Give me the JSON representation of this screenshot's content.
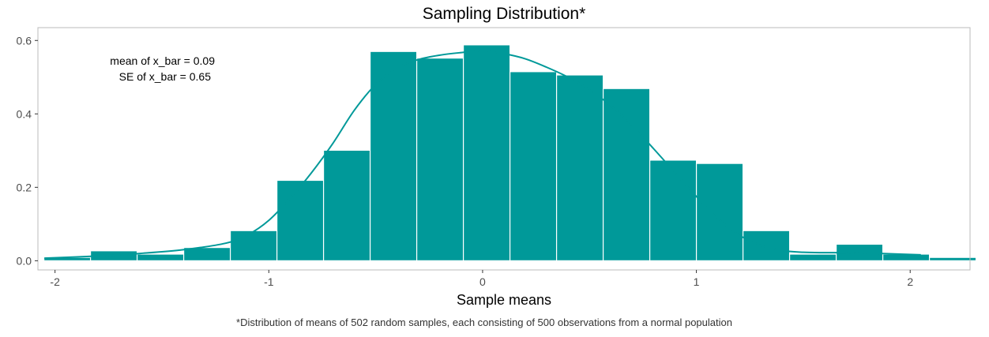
{
  "chart_data": {
    "type": "histogram",
    "title": "Sampling Distribution*",
    "xlabel": "Sample means",
    "ylabel": "",
    "caption": "*Distribution of means of 502 random samples, each consisting of 500 observations from a normal population",
    "annotations": [
      "mean of x_bar = 0.09",
      "SE of x_bar = 0.65"
    ],
    "xlim": [
      -2.08,
      2.28
    ],
    "ylim": [
      -0.025,
      0.635
    ],
    "xticks": [
      -2,
      -1,
      0,
      1,
      2
    ],
    "xtick_labels": [
      "-2",
      "-1",
      "0",
      "1",
      "2"
    ],
    "yticks": [
      0.0,
      0.2,
      0.4,
      0.6
    ],
    "ytick_labels": [
      "0.0",
      "0.2",
      "0.4",
      "0.6"
    ],
    "grid": false,
    "bin_width": 0.218,
    "bins": [
      {
        "x0": -2.052,
        "x1": -1.834,
        "density": 0.009
      },
      {
        "x0": -1.834,
        "x1": -1.616,
        "density": 0.027
      },
      {
        "x0": -1.616,
        "x1": -1.398,
        "density": 0.018
      },
      {
        "x0": -1.398,
        "x1": -1.18,
        "density": 0.036
      },
      {
        "x0": -1.18,
        "x1": -0.962,
        "density": 0.082
      },
      {
        "x0": -0.962,
        "x1": -0.744,
        "density": 0.219
      },
      {
        "x0": -0.744,
        "x1": -0.526,
        "density": 0.301
      },
      {
        "x0": -0.526,
        "x1": -0.308,
        "density": 0.57
      },
      {
        "x0": -0.308,
        "x1": -0.09,
        "density": 0.552
      },
      {
        "x0": -0.09,
        "x1": 0.128,
        "density": 0.588
      },
      {
        "x0": 0.128,
        "x1": 0.346,
        "density": 0.515
      },
      {
        "x0": 0.346,
        "x1": 0.564,
        "density": 0.506
      },
      {
        "x0": 0.564,
        "x1": 0.782,
        "density": 0.469
      },
      {
        "x0": 0.782,
        "x1": 1.0,
        "density": 0.274
      },
      {
        "x0": 1.0,
        "x1": 1.218,
        "density": 0.265
      },
      {
        "x0": 1.218,
        "x1": 1.436,
        "density": 0.082
      },
      {
        "x0": 1.436,
        "x1": 1.654,
        "density": 0.018
      },
      {
        "x0": 1.654,
        "x1": 1.872,
        "density": 0.045
      },
      {
        "x0": 1.872,
        "x1": 2.09,
        "density": 0.018
      },
      {
        "x0": 2.09,
        "x1": 2.308,
        "density": 0.009
      }
    ],
    "density_curve": {
      "x": [
        -2.05,
        -1.8,
        -1.6,
        -1.4,
        -1.2,
        -1.1,
        -1.0,
        -0.9,
        -0.8,
        -0.7,
        -0.6,
        -0.5,
        -0.4,
        -0.3,
        -0.2,
        -0.1,
        0.0,
        0.1,
        0.2,
        0.3,
        0.4,
        0.5,
        0.6,
        0.7,
        0.8,
        0.9,
        1.0,
        1.1,
        1.2,
        1.3,
        1.4,
        1.5,
        1.6,
        1.7,
        1.8,
        1.9,
        2.05
      ],
      "y": [
        0.007,
        0.013,
        0.02,
        0.03,
        0.048,
        0.07,
        0.11,
        0.17,
        0.24,
        0.32,
        0.41,
        0.48,
        0.525,
        0.548,
        0.56,
        0.567,
        0.572,
        0.564,
        0.55,
        0.527,
        0.5,
        0.466,
        0.422,
        0.368,
        0.305,
        0.24,
        0.175,
        0.116,
        0.07,
        0.042,
        0.028,
        0.023,
        0.022,
        0.022,
        0.021,
        0.019,
        0.016
      ]
    },
    "colors": {
      "bar_fill": "#009999",
      "bar_edge": "#ffffff",
      "curve": "#009999",
      "panel_border": "#bbbbbb",
      "tick_text": "#4d4d4d",
      "text": "#000000"
    }
  }
}
